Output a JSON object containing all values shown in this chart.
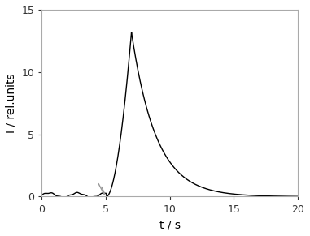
{
  "xlim": [
    0,
    20
  ],
  "ylim": [
    0,
    15
  ],
  "xticks": [
    0,
    5,
    10,
    15,
    20
  ],
  "yticks": [
    0,
    5,
    10,
    15
  ],
  "xlabel": "t / s",
  "ylabel": "I / rel.units",
  "background_color": "#ffffff",
  "line_color": "#000000",
  "arrow_color": "#999999",
  "peak_time": 7.0,
  "peak_value": 13.2,
  "rise_start": 5.05,
  "noise_amplitude": 0.18,
  "noise_freq": 0.9,
  "decay_rate": 0.52,
  "baseline": 0.12,
  "spine_color": "#aaaaaa",
  "tick_fontsize": 9,
  "label_fontsize": 10
}
